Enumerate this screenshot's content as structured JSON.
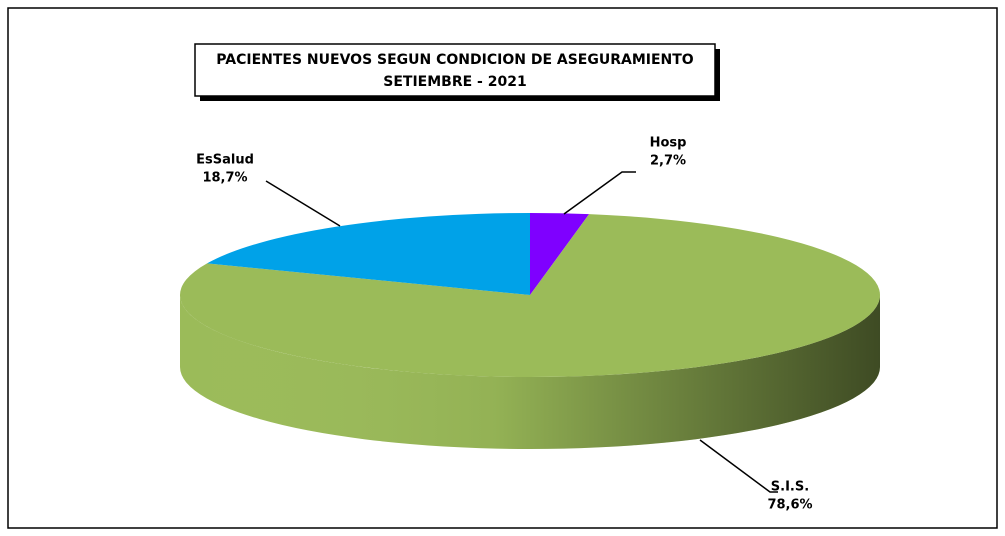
{
  "chart_data": {
    "type": "pie3d",
    "title": "PACIENTES NUEVOS SEGUN CONDICION DE ASEGURAMIENTO",
    "subtitle": "SETIEMBRE - 2021",
    "categories": [
      "Hosp",
      "S.I.S.",
      "EsSalud"
    ],
    "values": [
      2.7,
      78.6,
      18.7
    ],
    "value_labels": [
      "2,7%",
      "78,6%",
      "18,7%"
    ],
    "colors": [
      "#7f00ff",
      "#9bbb59",
      "#00a2e8"
    ]
  }
}
